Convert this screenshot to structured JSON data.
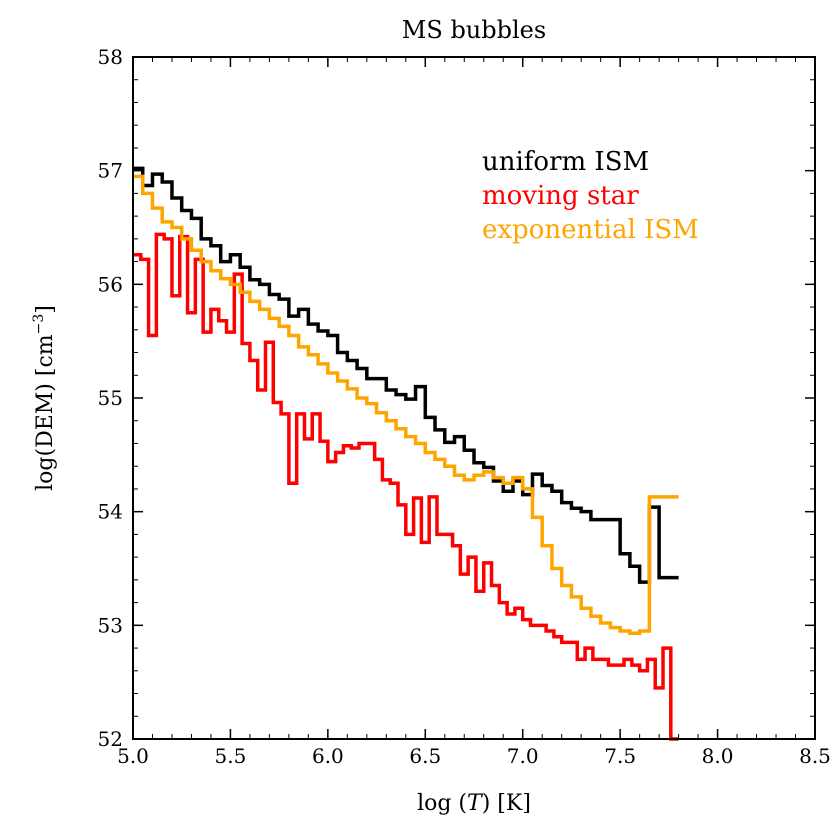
{
  "chart_data": {
    "type": "line",
    "step": true,
    "title": "MS bubbles",
    "xlabel_pre": "log (",
    "xlabel_var": "T",
    "xlabel_post": ") [K]",
    "ylabel_main": "log(DEM) [cm",
    "ylabel_sup": "−3",
    "ylabel_close": "]",
    "xlim": [
      5.0,
      8.5
    ],
    "ylim": [
      52,
      58
    ],
    "xticks": [
      5.0,
      5.5,
      6.0,
      6.5,
      7.0,
      7.5,
      8.0,
      8.5
    ],
    "xtick_labels": [
      "5.0",
      "5.5",
      "6.0",
      "6.5",
      "7.0",
      "7.5",
      "8.0",
      "8.5"
    ],
    "yticks": [
      52,
      53,
      54,
      55,
      56,
      57,
      58
    ],
    "ytick_labels": [
      "52",
      "53",
      "54",
      "55",
      "56",
      "57",
      "58"
    ],
    "legend_position": "top-right",
    "series": [
      {
        "name": "uniform ISM",
        "color": "#000000",
        "x": [
          5.0,
          5.05,
          5.1,
          5.15,
          5.2,
          5.25,
          5.3,
          5.35,
          5.4,
          5.45,
          5.5,
          5.55,
          5.6,
          5.65,
          5.7,
          5.75,
          5.8,
          5.85,
          5.9,
          5.95,
          6.0,
          6.05,
          6.1,
          6.15,
          6.2,
          6.25,
          6.3,
          6.35,
          6.4,
          6.45,
          6.5,
          6.55,
          6.6,
          6.65,
          6.7,
          6.75,
          6.8,
          6.85,
          6.9,
          6.95,
          7.0,
          7.05,
          7.1,
          7.15,
          7.2,
          7.25,
          7.3,
          7.35,
          7.4,
          7.45,
          7.5,
          7.55,
          7.6,
          7.65,
          7.7,
          7.75
        ],
        "y": [
          57.02,
          56.87,
          56.97,
          56.9,
          56.76,
          56.65,
          56.58,
          56.4,
          56.34,
          56.2,
          56.26,
          56.15,
          56.04,
          56.0,
          55.91,
          55.87,
          55.72,
          55.78,
          55.65,
          55.59,
          55.55,
          55.4,
          55.33,
          55.26,
          55.17,
          55.17,
          55.07,
          55.03,
          54.99,
          55.1,
          54.83,
          54.72,
          54.61,
          54.66,
          54.54,
          54.43,
          54.39,
          54.27,
          54.18,
          54.27,
          54.15,
          54.33,
          54.23,
          54.18,
          54.08,
          54.03,
          54.0,
          53.93,
          53.93,
          53.93,
          53.63,
          53.52,
          53.38,
          54.04,
          53.42,
          53.42
        ]
      },
      {
        "name": "moving star",
        "color": "#ff0000",
        "x": [
          5.0,
          5.04,
          5.08,
          5.12,
          5.16,
          5.2,
          5.24,
          5.28,
          5.32,
          5.36,
          5.4,
          5.44,
          5.48,
          5.52,
          5.56,
          5.6,
          5.64,
          5.68,
          5.72,
          5.76,
          5.8,
          5.84,
          5.88,
          5.92,
          5.96,
          6.0,
          6.04,
          6.08,
          6.12,
          6.16,
          6.2,
          6.24,
          6.28,
          6.32,
          6.36,
          6.4,
          6.44,
          6.48,
          6.52,
          6.56,
          6.6,
          6.64,
          6.68,
          6.72,
          6.76,
          6.8,
          6.84,
          6.88,
          6.92,
          6.96,
          7.0,
          7.04,
          7.08,
          7.12,
          7.16,
          7.2,
          7.24,
          7.28,
          7.32,
          7.36,
          7.4,
          7.44,
          7.48,
          7.52,
          7.56,
          7.6,
          7.64,
          7.68,
          7.72,
          7.76
        ],
        "y": [
          56.26,
          56.22,
          55.55,
          56.44,
          56.4,
          55.9,
          56.42,
          55.75,
          56.22,
          55.58,
          55.78,
          55.68,
          55.58,
          56.09,
          55.48,
          55.33,
          55.07,
          55.49,
          54.96,
          54.86,
          54.25,
          54.86,
          54.64,
          54.86,
          54.62,
          54.44,
          54.52,
          54.58,
          54.56,
          54.6,
          54.6,
          54.46,
          54.28,
          54.25,
          54.06,
          53.8,
          54.12,
          53.73,
          54.13,
          53.8,
          53.8,
          53.7,
          53.45,
          53.6,
          53.3,
          53.55,
          53.35,
          53.2,
          53.1,
          53.15,
          53.05,
          53.0,
          53.0,
          52.95,
          52.9,
          52.85,
          52.85,
          52.7,
          52.8,
          52.7,
          52.7,
          52.65,
          52.65,
          52.7,
          52.65,
          52.6,
          52.7,
          52.45,
          52.8,
          51.98
        ]
      },
      {
        "name": "exponential ISM",
        "color": "#ffa500",
        "x": [
          5.0,
          5.05,
          5.1,
          5.15,
          5.2,
          5.25,
          5.3,
          5.35,
          5.4,
          5.45,
          5.5,
          5.55,
          5.6,
          5.65,
          5.7,
          5.75,
          5.8,
          5.85,
          5.9,
          5.95,
          6.0,
          6.05,
          6.1,
          6.15,
          6.2,
          6.25,
          6.3,
          6.35,
          6.4,
          6.45,
          6.5,
          6.55,
          6.6,
          6.65,
          6.7,
          6.75,
          6.8,
          6.85,
          6.9,
          6.95,
          7.0,
          7.05,
          7.1,
          7.15,
          7.2,
          7.25,
          7.3,
          7.35,
          7.4,
          7.45,
          7.5,
          7.55,
          7.6,
          7.65,
          7.7,
          7.75
        ],
        "y": [
          56.95,
          56.8,
          56.67,
          56.55,
          56.5,
          56.4,
          56.3,
          56.2,
          56.12,
          56.05,
          56.0,
          55.93,
          55.85,
          55.78,
          55.7,
          55.63,
          55.55,
          55.45,
          55.38,
          55.3,
          55.22,
          55.15,
          55.08,
          55.0,
          54.95,
          54.87,
          54.8,
          54.73,
          54.66,
          54.6,
          54.52,
          54.46,
          54.4,
          54.32,
          54.28,
          54.32,
          54.35,
          54.3,
          54.25,
          54.3,
          54.2,
          53.95,
          53.7,
          53.5,
          53.35,
          53.25,
          53.15,
          53.08,
          53.02,
          52.98,
          52.95,
          52.93,
          52.95,
          54.13,
          54.13,
          54.13
        ]
      }
    ]
  }
}
